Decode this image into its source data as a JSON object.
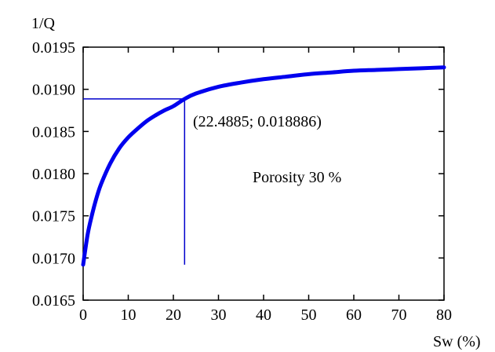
{
  "chart_data": {
    "type": "line",
    "ylabel": "1/Q",
    "xlabel": "Sw (%)",
    "xlim": [
      0,
      80
    ],
    "ylim": [
      0.0165,
      0.0195
    ],
    "x_ticks": [
      0,
      10,
      20,
      30,
      40,
      50,
      60,
      70,
      80
    ],
    "x_tick_labels": [
      "0",
      "10",
      "20",
      "30",
      "40",
      "50",
      "60",
      "70",
      "80"
    ],
    "y_ticks": [
      0.0165,
      0.017,
      0.0175,
      0.018,
      0.0185,
      0.019,
      0.0195
    ],
    "y_tick_labels": [
      "0.0165",
      "0.0170",
      "0.0175",
      "0.0180",
      "0.0185",
      "0.0190",
      "0.0195"
    ],
    "grid": false,
    "series": [
      {
        "color": "#0000ee",
        "x": [
          0,
          1,
          2,
          3,
          4,
          6,
          8,
          10,
          12,
          14,
          16,
          18,
          20,
          22.4885,
          25,
          30,
          35,
          40,
          45,
          50,
          55,
          60,
          65,
          70,
          75,
          80
        ],
        "y": [
          0.01692,
          0.01728,
          0.01752,
          0.01772,
          0.01788,
          0.01812,
          0.0183,
          0.01843,
          0.01853,
          0.01862,
          0.01869,
          0.01875,
          0.0188,
          0.018886,
          0.01895,
          0.01903,
          0.01908,
          0.01912,
          0.01915,
          0.01918,
          0.0192,
          0.01922,
          0.01923,
          0.01924,
          0.01925,
          0.01926
        ]
      }
    ],
    "marker_point": {
      "x": 22.4885,
      "y": 0.018886,
      "color": "#0000cc"
    },
    "marker_y_bottom": 0.01692,
    "annotations": {
      "point_label": "(22.4885; 0.018886)",
      "porosity_label": "Porosity 30 %"
    }
  }
}
